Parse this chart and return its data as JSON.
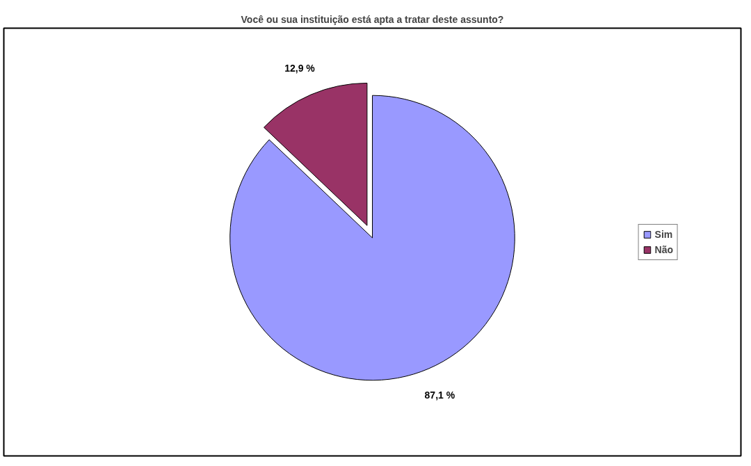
{
  "chart_data": {
    "type": "pie",
    "title": "Você ou sua instituição está apta a tratar deste assunto?",
    "categories": [
      "Sim",
      "Não"
    ],
    "values": [
      87.1,
      12.9
    ],
    "colors": [
      "#9999ff",
      "#993366"
    ],
    "value_labels": [
      "87,1 %",
      "12,9 %"
    ],
    "legend": "right"
  }
}
